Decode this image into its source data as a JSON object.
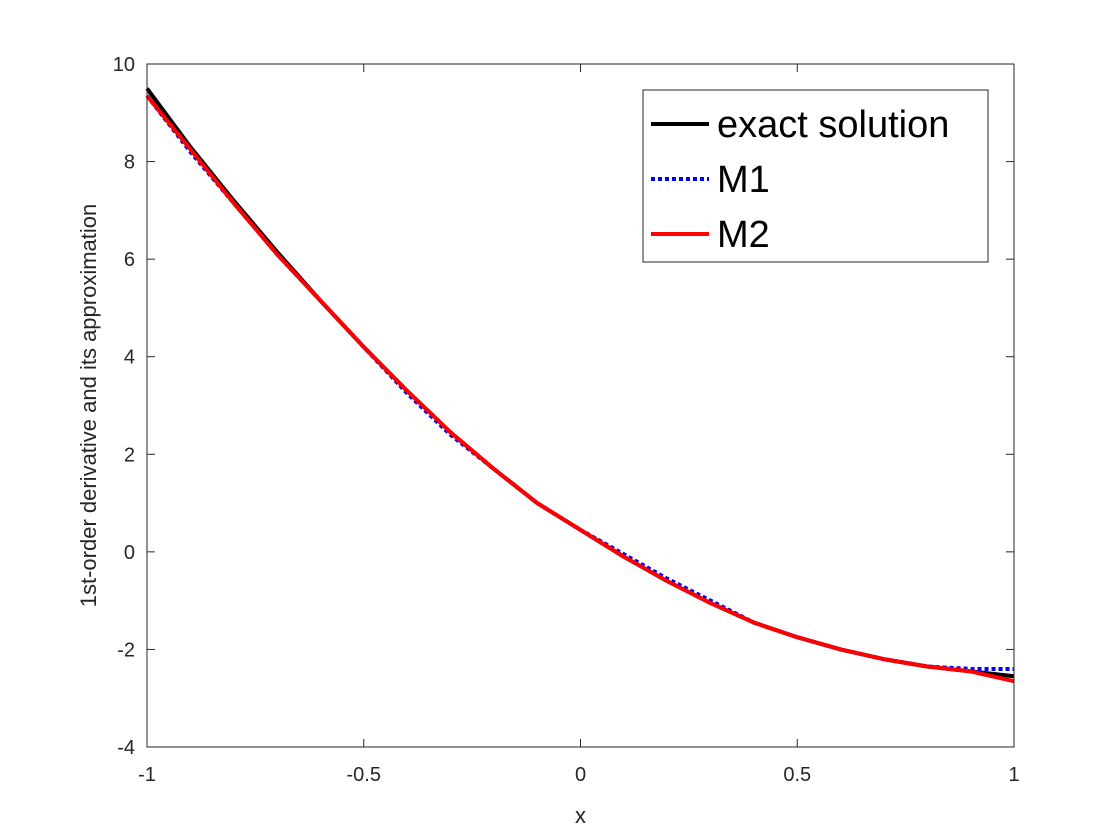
{
  "chart_data": {
    "type": "line",
    "xlabel": "x",
    "ylabel": "1st-order derivative and its approximation",
    "xlim": [
      -1,
      1
    ],
    "ylim": [
      -4,
      10
    ],
    "xticks": [
      -1,
      -0.5,
      0,
      0.5,
      1
    ],
    "xtick_labels": [
      "-1",
      "-0.5",
      "0",
      "0.5",
      "1"
    ],
    "yticks": [
      -4,
      -2,
      0,
      2,
      4,
      6,
      8,
      10
    ],
    "ytick_labels": [
      "-4",
      "-2",
      "0",
      "2",
      "4",
      "6",
      "8",
      "10"
    ],
    "grid": false,
    "legend_position": "top-right",
    "series": [
      {
        "name": "exact solution",
        "color": "#000000",
        "style": "solid",
        "x": [
          -1.0,
          -0.9,
          -0.8,
          -0.7,
          -0.6,
          -0.5,
          -0.4,
          -0.3,
          -0.2,
          -0.1,
          0.0,
          0.1,
          0.2,
          0.3,
          0.4,
          0.5,
          0.6,
          0.7,
          0.8,
          0.9,
          1.0
        ],
        "y": [
          9.5,
          8.3,
          7.2,
          6.15,
          5.15,
          4.2,
          3.3,
          2.45,
          1.7,
          1.0,
          0.45,
          -0.1,
          -0.6,
          -1.05,
          -1.45,
          -1.75,
          -2.0,
          -2.2,
          -2.35,
          -2.45,
          -2.55
        ]
      },
      {
        "name": "M1",
        "color": "#0000ff",
        "style": "dotted",
        "x": [
          -1.0,
          -0.9,
          -0.8,
          -0.7,
          -0.6,
          -0.5,
          -0.4,
          -0.3,
          -0.2,
          -0.1,
          0.0,
          0.1,
          0.2,
          0.3,
          0.4,
          0.5,
          0.6,
          0.7,
          0.8,
          0.9,
          1.0
        ],
        "y": [
          9.35,
          8.2,
          7.15,
          6.1,
          5.15,
          4.2,
          3.25,
          2.4,
          1.7,
          1.0,
          0.45,
          -0.05,
          -0.55,
          -1.0,
          -1.45,
          -1.75,
          -2.0,
          -2.2,
          -2.35,
          -2.4,
          -2.4
        ]
      },
      {
        "name": "M2",
        "color": "#ff0000",
        "style": "solid",
        "x": [
          -1.0,
          -0.9,
          -0.8,
          -0.7,
          -0.6,
          -0.5,
          -0.4,
          -0.3,
          -0.2,
          -0.1,
          0.0,
          0.1,
          0.2,
          0.3,
          0.4,
          0.5,
          0.6,
          0.7,
          0.8,
          0.9,
          1.0
        ],
        "y": [
          9.35,
          8.25,
          7.15,
          6.1,
          5.15,
          4.2,
          3.3,
          2.45,
          1.7,
          1.0,
          0.45,
          -0.1,
          -0.6,
          -1.05,
          -1.45,
          -1.75,
          -2.0,
          -2.2,
          -2.35,
          -2.45,
          -2.65
        ]
      }
    ]
  }
}
